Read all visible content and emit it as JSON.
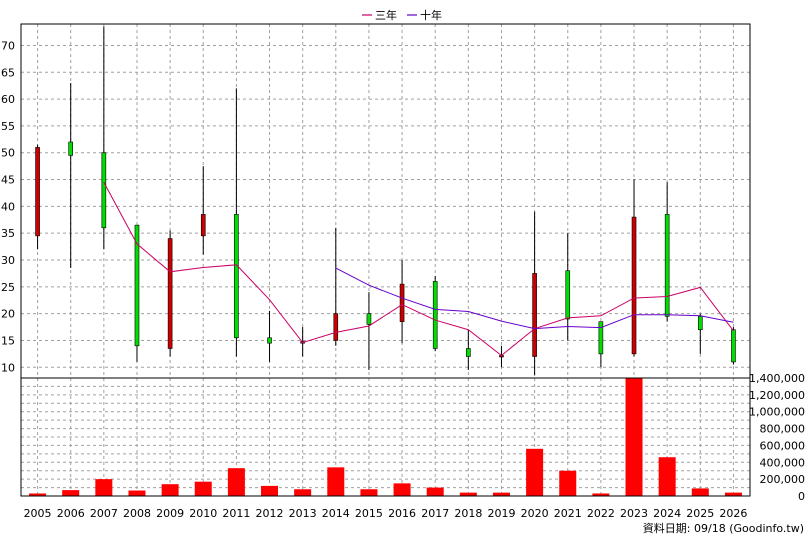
{
  "legend": {
    "items": [
      {
        "label": "三年",
        "color": "#cc0066"
      },
      {
        "label": "十年",
        "color": "#6600cc"
      }
    ]
  },
  "footer": {
    "text": "資料日期: 09/18 (Goodinfo.tw)"
  },
  "chart_data": {
    "type": "candlestick",
    "x": [
      "2005",
      "2006",
      "2007",
      "2008",
      "2009",
      "2010",
      "2011",
      "2012",
      "2013",
      "2014",
      "2015",
      "2016",
      "2017",
      "2018",
      "2019",
      "2020",
      "2021",
      "2022",
      "2023",
      "2024",
      "2025",
      "2026"
    ],
    "price_ylim": [
      8,
      74
    ],
    "price_ticks": [
      10,
      15,
      20,
      25,
      30,
      35,
      40,
      45,
      50,
      55,
      60,
      65,
      70
    ],
    "volume_ylim": [
      0,
      1400000
    ],
    "volume_ticks": [
      "0",
      "200,000",
      "400,000",
      "600,000",
      "800,000",
      "1,000,000",
      "1,200,000",
      "1,400,000"
    ],
    "volume_tick_values": [
      0,
      200000,
      400000,
      600000,
      800000,
      1000000,
      1200000,
      1400000
    ],
    "candles": [
      {
        "open": 34.5,
        "close": 51.0,
        "high": 51.5,
        "low": 32.0
      },
      {
        "open": 52.0,
        "close": 49.5,
        "high": 63.0,
        "low": 28.5
      },
      {
        "open": 50.0,
        "close": 36.0,
        "high": 73.5,
        "low": 32.0
      },
      {
        "open": 36.5,
        "close": 14.0,
        "high": 36.5,
        "low": 11.0
      },
      {
        "open": 13.5,
        "close": 34.0,
        "high": 35.5,
        "low": 12.0
      },
      {
        "open": 34.5,
        "close": 38.5,
        "high": 47.5,
        "low": 31.0
      },
      {
        "open": 38.5,
        "close": 15.5,
        "high": 62.0,
        "low": 12.0
      },
      {
        "open": 15.5,
        "close": 14.5,
        "high": 20.5,
        "low": 11.0
      },
      {
        "open": 14.5,
        "close": 14.8,
        "high": 17.5,
        "low": 12.0
      },
      {
        "open": 15.0,
        "close": 20.0,
        "high": 36.0,
        "low": 14.0
      },
      {
        "open": 20.0,
        "close": 18.0,
        "high": 24.0,
        "low": 9.5
      },
      {
        "open": 18.5,
        "close": 25.5,
        "high": 30.0,
        "low": 14.5
      },
      {
        "open": 26.0,
        "close": 13.5,
        "high": 27.0,
        "low": 13.0
      },
      {
        "open": 13.5,
        "close": 12.0,
        "high": 17.0,
        "low": 9.5
      },
      {
        "open": 12.0,
        "close": 12.2,
        "high": 14.0,
        "low": 10.0
      },
      {
        "open": 12.0,
        "close": 27.5,
        "high": 39.0,
        "low": 8.5
      },
      {
        "open": 28.0,
        "close": 19.0,
        "high": 35.0,
        "low": 15.0
      },
      {
        "open": 18.5,
        "close": 12.5,
        "high": 18.5,
        "low": 10.0
      },
      {
        "open": 12.5,
        "close": 38.0,
        "high": 45.0,
        "low": 12.0
      },
      {
        "open": 38.5,
        "close": 19.5,
        "high": 44.5,
        "low": 18.5
      },
      {
        "open": 19.5,
        "close": 17.0,
        "high": 20.0,
        "low": 12.5
      },
      {
        "open": 17.0,
        "close": 11.0,
        "high": 17.5,
        "low": 10.5
      }
    ],
    "up_color": "#cc0000",
    "down_color": "#00dd00",
    "volume_color": "#ff0000",
    "volume": [
      30000,
      70000,
      200000,
      65000,
      140000,
      170000,
      330000,
      120000,
      80000,
      340000,
      80000,
      150000,
      100000,
      40000,
      40000,
      560000,
      300000,
      30000,
      1400000,
      460000,
      90000,
      40000
    ],
    "series": [
      {
        "name": "三年",
        "color": "#cc0066",
        "values": [
          null,
          null,
          44.5,
          33,
          27.8,
          28.6,
          29.1,
          22.6,
          14.6,
          16.5,
          17.7,
          21.7,
          18.8,
          17,
          12.2,
          17.2,
          19.2,
          19.6,
          22.9,
          23.2,
          24.9,
          16.8
        ]
      },
      {
        "name": "十年",
        "color": "#6600cc",
        "values": [
          null,
          null,
          null,
          null,
          null,
          null,
          null,
          null,
          null,
          28.5,
          25.3,
          22.9,
          20.8,
          20.4,
          18.6,
          17.2,
          17.6,
          17.4,
          19.8,
          19.8,
          19.6,
          18.4
        ]
      }
    ]
  }
}
